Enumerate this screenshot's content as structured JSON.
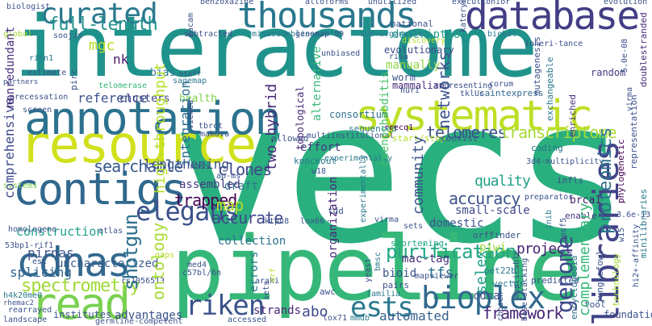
{
  "words": [
    {
      "text": "vecs",
      "color": "#2ab07f"
    },
    {
      "text": "interactome",
      "color": "#20928c"
    },
    {
      "text": "pipeline",
      "color": "#35b779"
    },
    {
      "text": "resource",
      "color": "#d0e11c"
    },
    {
      "text": "database",
      "color": "#433e85"
    },
    {
      "text": "annotation",
      "color": "#2c728e"
    },
    {
      "text": "systematic",
      "color": "#bddf26"
    },
    {
      "text": "thousands",
      "color": "#2a788e"
    },
    {
      "text": "contigs",
      "color": "#31688e"
    },
    {
      "text": "cdnas",
      "color": "#31688e"
    },
    {
      "text": "read",
      "color": "#7ad151"
    },
    {
      "text": "libraries",
      "color": "#414487"
    },
    {
      "text": "curated",
      "color": "#2a788e"
    },
    {
      "text": "bioplex",
      "color": "#31688e"
    },
    {
      "text": "riken",
      "color": "#3b528b"
    },
    {
      "text": "ests",
      "color": "#2a788e"
    },
    {
      "text": "elegans",
      "color": "#3b528b"
    },
    {
      "text": "genome",
      "color": "#3e4989"
    },
    {
      "text": "full-length",
      "color": "#21918c"
    },
    {
      "text": "purification",
      "color": "#22a884"
    },
    {
      "text": "spectrometry",
      "color": "#a0da39"
    },
    {
      "text": "searchable",
      "color": "#38598c"
    },
    {
      "text": "telomeres",
      "color": "#3b528b"
    },
    {
      "text": "transcriptome",
      "color": "#a8db34"
    },
    {
      "text": "accuracy",
      "color": "#3b528b"
    },
    {
      "text": "trapped",
      "color": "#440154"
    },
    {
      "text": "clones",
      "color": "#3e4989"
    },
    {
      "text": "map",
      "color": "#b5de2b"
    },
    {
      "text": "accurate",
      "color": "#3e4989"
    },
    {
      "text": "quality",
      "color": "#1fa188"
    },
    {
      "text": "project",
      "color": "#482475"
    },
    {
      "text": "framework",
      "color": "#482878"
    },
    {
      "text": "automated",
      "color": "#355f8d"
    },
    {
      "text": "abo",
      "color": "#3e4989"
    },
    {
      "text": "shotgun",
      "color": "#2c728e"
    },
    {
      "text": "ontology",
      "color": "#a8db34"
    },
    {
      "text": "high-throughput",
      "color": "#b5de2b"
    },
    {
      "text": "two-hybrid",
      "color": "#482878"
    },
    {
      "text": "proteomics",
      "color": "#2c728e"
    },
    {
      "text": "complementary",
      "color": "#35b779"
    },
    {
      "text": "community",
      "color": "#3b528b"
    },
    {
      "text": "selex",
      "color": "#1f9e89"
    },
    {
      "text": "networks",
      "color": "#3b528b"
    },
    {
      "text": "description",
      "color": "#1f9e89"
    },
    {
      "text": "manually",
      "color": "#90d743"
    },
    {
      "text": "worm",
      "color": "#3b528b"
    },
    {
      "text": "reference",
      "color": "#3b528b"
    },
    {
      "text": "lengthening",
      "color": "#3b528b"
    },
    {
      "text": "construction",
      "color": "#1f9e89"
    },
    {
      "text": "comprehensive",
      "color": "#3e4989"
    },
    {
      "text": "nonredundant",
      "color": "#472d7b"
    },
    {
      "text": "mgc",
      "color": "#b5de2b"
    },
    {
      "text": "nk",
      "color": "#481a6c"
    },
    {
      "text": "tfs",
      "color": "#2c728e"
    },
    {
      "text": "piwi",
      "color": "#9fda3a"
    },
    {
      "text": "pirnas",
      "color": "#3b528b"
    },
    {
      "text": "splicing",
      "color": "#32658e"
    },
    {
      "text": "uncharacterized",
      "color": "#38598c"
    },
    {
      "text": "integration",
      "color": "#2e6e8e"
    },
    {
      "text": "assembled",
      "color": "#443a83"
    },
    {
      "text": "draft",
      "color": "#2a788e"
    },
    {
      "text": "effort",
      "color": "#453882"
    },
    {
      "text": "collection",
      "color": "#2c728e"
    },
    {
      "text": "cdna",
      "color": "#3b528b"
    },
    {
      "text": "strands",
      "color": "#482878"
    },
    {
      "text": "advantages",
      "color": "#3b528b"
    },
    {
      "text": "institutes",
      "color": "#3b528b"
    },
    {
      "text": "mammalian",
      "color": "#472d7b"
    },
    {
      "text": "evolutionary",
      "color": "#3e4989"
    },
    {
      "text": "consortium",
      "color": "#2e6e8e"
    },
    {
      "text": "alternative",
      "color": "#37b878"
    },
    {
      "text": "topological",
      "color": "#482878"
    },
    {
      "text": "caenorhabditis",
      "color": "#4ac16d"
    },
    {
      "text": "organization",
      "color": "#482878"
    },
    {
      "text": "domestic",
      "color": "#3b528b"
    },
    {
      "text": "small-scale",
      "color": "#3e4989"
    },
    {
      "text": "bioid",
      "color": "#3b528b"
    },
    {
      "text": "mac-tag",
      "color": "#472d7b"
    },
    {
      "text": "health",
      "color": "#7fd34e"
    },
    {
      "text": "clusters",
      "color": "#414487"
    },
    {
      "text": "errors",
      "color": "#2a788e"
    },
    {
      "text": "brca1",
      "color": "#481a6c"
    },
    {
      "text": "random",
      "color": "#443983"
    },
    {
      "text": "bias",
      "color": "#2a788e"
    },
    {
      "text": "mutagenesis",
      "color": "#3b528b"
    },
    {
      "text": "exchangeable",
      "color": "#2a788e"
    },
    {
      "text": "enriched",
      "color": "#46327e"
    },
    {
      "text": "phylogenetic",
      "color": "#440154"
    },
    {
      "text": "representation",
      "color": "#3b528b"
    },
    {
      "text": "minilibraries",
      "color": "#2a788e"
    },
    {
      "text": "doublestranded",
      "color": "#482878"
    },
    {
      "text": "evolution",
      "color": "#3b528b"
    },
    {
      "text": "national",
      "color": "#3b528b"
    },
    {
      "text": "foundation",
      "color": "#3b528b"
    },
    {
      "text": "technology",
      "color": "#a5db36"
    },
    {
      "text": "encyclopedia",
      "color": "#2e6e8e"
    },
    {
      "text": "junglefowl",
      "color": "#3b528b"
    },
    {
      "text": "saintexpress",
      "color": "#31688e"
    },
    {
      "text": "mapviewer",
      "color": "#3b528b"
    },
    {
      "text": "knockout",
      "color": "#2a788e"
    },
    {
      "text": "allowed",
      "color": "#3b528b"
    },
    {
      "text": "sequenced",
      "color": "#2a788e"
    },
    {
      "text": "multiinstitutional",
      "color": "#3b528b"
    },
    {
      "text": "start/stop",
      "color": "#b5de2b"
    },
    {
      "text": "coexist",
      "color": "#3b528b"
    },
    {
      "text": "rrecq1",
      "color": "#440154"
    },
    {
      "text": "coding",
      "color": "#2c728e"
    },
    {
      "text": "infls",
      "color": "#3b528b"
    },
    {
      "text": "enable",
      "color": "#46327e"
    },
    {
      "text": "orffinder",
      "color": "#3b528b"
    },
    {
      "text": "inib",
      "color": "#2a788e"
    },
    {
      "text": "cpsf5",
      "color": "#3b528b"
    },
    {
      "text": "preparator",
      "color": "#3b528b"
    },
    {
      "text": "pet22b",
      "color": "#2a788e"
    },
    {
      "text": "predicted",
      "color": "#3b528b"
    },
    {
      "text": "base-stacking",
      "color": "#3b528b"
    },
    {
      "text": "shortening",
      "color": "#22a884"
    },
    {
      "text": "pairs",
      "color": "#3b528b"
    },
    {
      "text": "chosen",
      "color": "#3b528b"
    },
    {
      "text": "bmsc",
      "color": "#2a788e"
    },
    {
      "text": "awc",
      "color": "#3b528b"
    },
    {
      "text": "tool",
      "color": "#3b528b"
    },
    {
      "text": "vector",
      "color": "#2a788e"
    },
    {
      "text": "yeast",
      "color": "#3b528b"
    },
    {
      "text": "familia",
      "color": "#2a788e"
    },
    {
      "text": "lox71",
      "color": "#3b528b"
    },
    {
      "text": "mmdb",
      "color": "#2a788e"
    },
    {
      "text": "accessed",
      "color": "#3b528b"
    },
    {
      "text": "germline-competent",
      "color": "#3b528b"
    },
    {
      "text": "landscape",
      "color": "#3b528b"
    },
    {
      "text": "rearrayed",
      "color": "#3b528b"
    },
    {
      "text": "rhemac2",
      "color": "#3b528b"
    },
    {
      "text": "h4k20me0",
      "color": "#2a788e"
    },
    {
      "text": "rs1056513",
      "color": "#3b528b"
    },
    {
      "text": "esc",
      "color": "#3b528b"
    },
    {
      "text": "53bp1-rif1",
      "color": "#3b528b"
    },
    {
      "text": "homologene",
      "color": "#3b528b"
    },
    {
      "text": "atlas",
      "color": "#3b528b"
    },
    {
      "text": "systems",
      "color": "#7ad151"
    },
    {
      "text": "screen",
      "color": "#3b528b"
    },
    {
      "text": "precessation",
      "color": "#3b528b"
    },
    {
      "text": "partners",
      "color": "#3b528b"
    },
    {
      "text": "estimate",
      "color": "#3b528b"
    },
    {
      "text": "rinn1",
      "color": "#2a788e"
    },
    {
      "text": "pirc",
      "color": "#3b528b"
    },
    {
      "text": "telomerase",
      "color": "#35b779"
    },
    {
      "text": "global",
      "color": "#9fda3a"
    },
    {
      "text": "biologist",
      "color": "#3b528b"
    },
    {
      "text": "soojin",
      "color": "#3b528b"
    },
    {
      "text": "subtracted",
      "color": "#3b528b"
    },
    {
      "text": "misassemblies",
      "color": "#2a788e"
    },
    {
      "text": "benzoxazine",
      "color": "#3b528b"
    },
    {
      "text": "alloforms",
      "color": "#3b528b"
    },
    {
      "text": "unutilized",
      "color": "#3b528b"
    },
    {
      "text": "executionior",
      "color": "#3b528b"
    },
    {
      "text": "macam",
      "color": "#3b528b"
    },
    {
      "text": "genemap'99",
      "color": "#3b528b"
    },
    {
      "text": "sub-organelle",
      "color": "#2a788e"
    },
    {
      "text": "discovery",
      "color": "#b5de2b"
    },
    {
      "text": "kateryna",
      "color": "#3b528b"
    },
    {
      "text": "bickel",
      "color": "#2a788e"
    },
    {
      "text": "inheri-tance",
      "color": "#3b528b"
    },
    {
      "text": "unbiased",
      "color": "#3b528b"
    },
    {
      "text": "risa",
      "color": "#3b528b"
    },
    {
      "text": "corum",
      "color": "#3b528b"
    },
    {
      "text": "tklUc",
      "color": "#3b528b"
    },
    {
      "text": "huri",
      "color": "#3b528b"
    },
    {
      "text": "representing",
      "color": "#3b528b"
    },
    {
      "text": "sagemap",
      "color": "#2a788e"
    },
    {
      "text": "tbrct",
      "color": "#3b528b"
    },
    {
      "text": "makova",
      "color": "#3b528b"
    },
    {
      "text": "araki",
      "color": "#3b528b"
    },
    {
      "text": "c57bl/6n",
      "color": "#3b528b"
    },
    {
      "text": "med4",
      "color": "#3b528b"
    },
    {
      "text": "ktpu8",
      "color": "#3b528b"
    },
    {
      "text": "lox66",
      "color": "#3b528b"
    },
    {
      "text": "tdd",
      "color": "#3b528b"
    },
    {
      "text": "orf",
      "color": "#b5de2b"
    },
    {
      "text": "ap-ms",
      "color": "#3b528b"
    },
    {
      "text": "3.6e-13",
      "color": "#3b528b"
    },
    {
      "text": "5.0e-08",
      "color": "#3b528b"
    },
    {
      "text": "hi2+-affinity",
      "color": "#3b528b"
    },
    {
      "text": "w15",
      "color": "#3b528b"
    },
    {
      "text": "virma",
      "color": "#3b528b"
    },
    {
      "text": "sets",
      "color": "#3b528b"
    },
    {
      "text": "experimentally",
      "color": "#2a788e"
    },
    {
      "text": "3d4-multiplicity",
      "color": "#3b528b"
    },
    {
      "text": "viewed",
      "color": "#3b528b"
    },
    {
      "text": "gaps",
      "color": "#b5de2b"
    },
    {
      "text": "mass",
      "color": "#3b528b"
    },
    {
      "text": "w18",
      "color": "#3b528b"
    },
    {
      "text": "stuff",
      "color": "#3b528b"
    },
    {
      "text": "applicable",
      "color": "#3b528b"
    },
    {
      "text": "vpil",
      "color": "#3b528b"
    },
    {
      "text": "iox",
      "color": "#3b528b"
    },
    {
      "text": "matk",
      "color": "#3b528b"
    }
  ]
}
